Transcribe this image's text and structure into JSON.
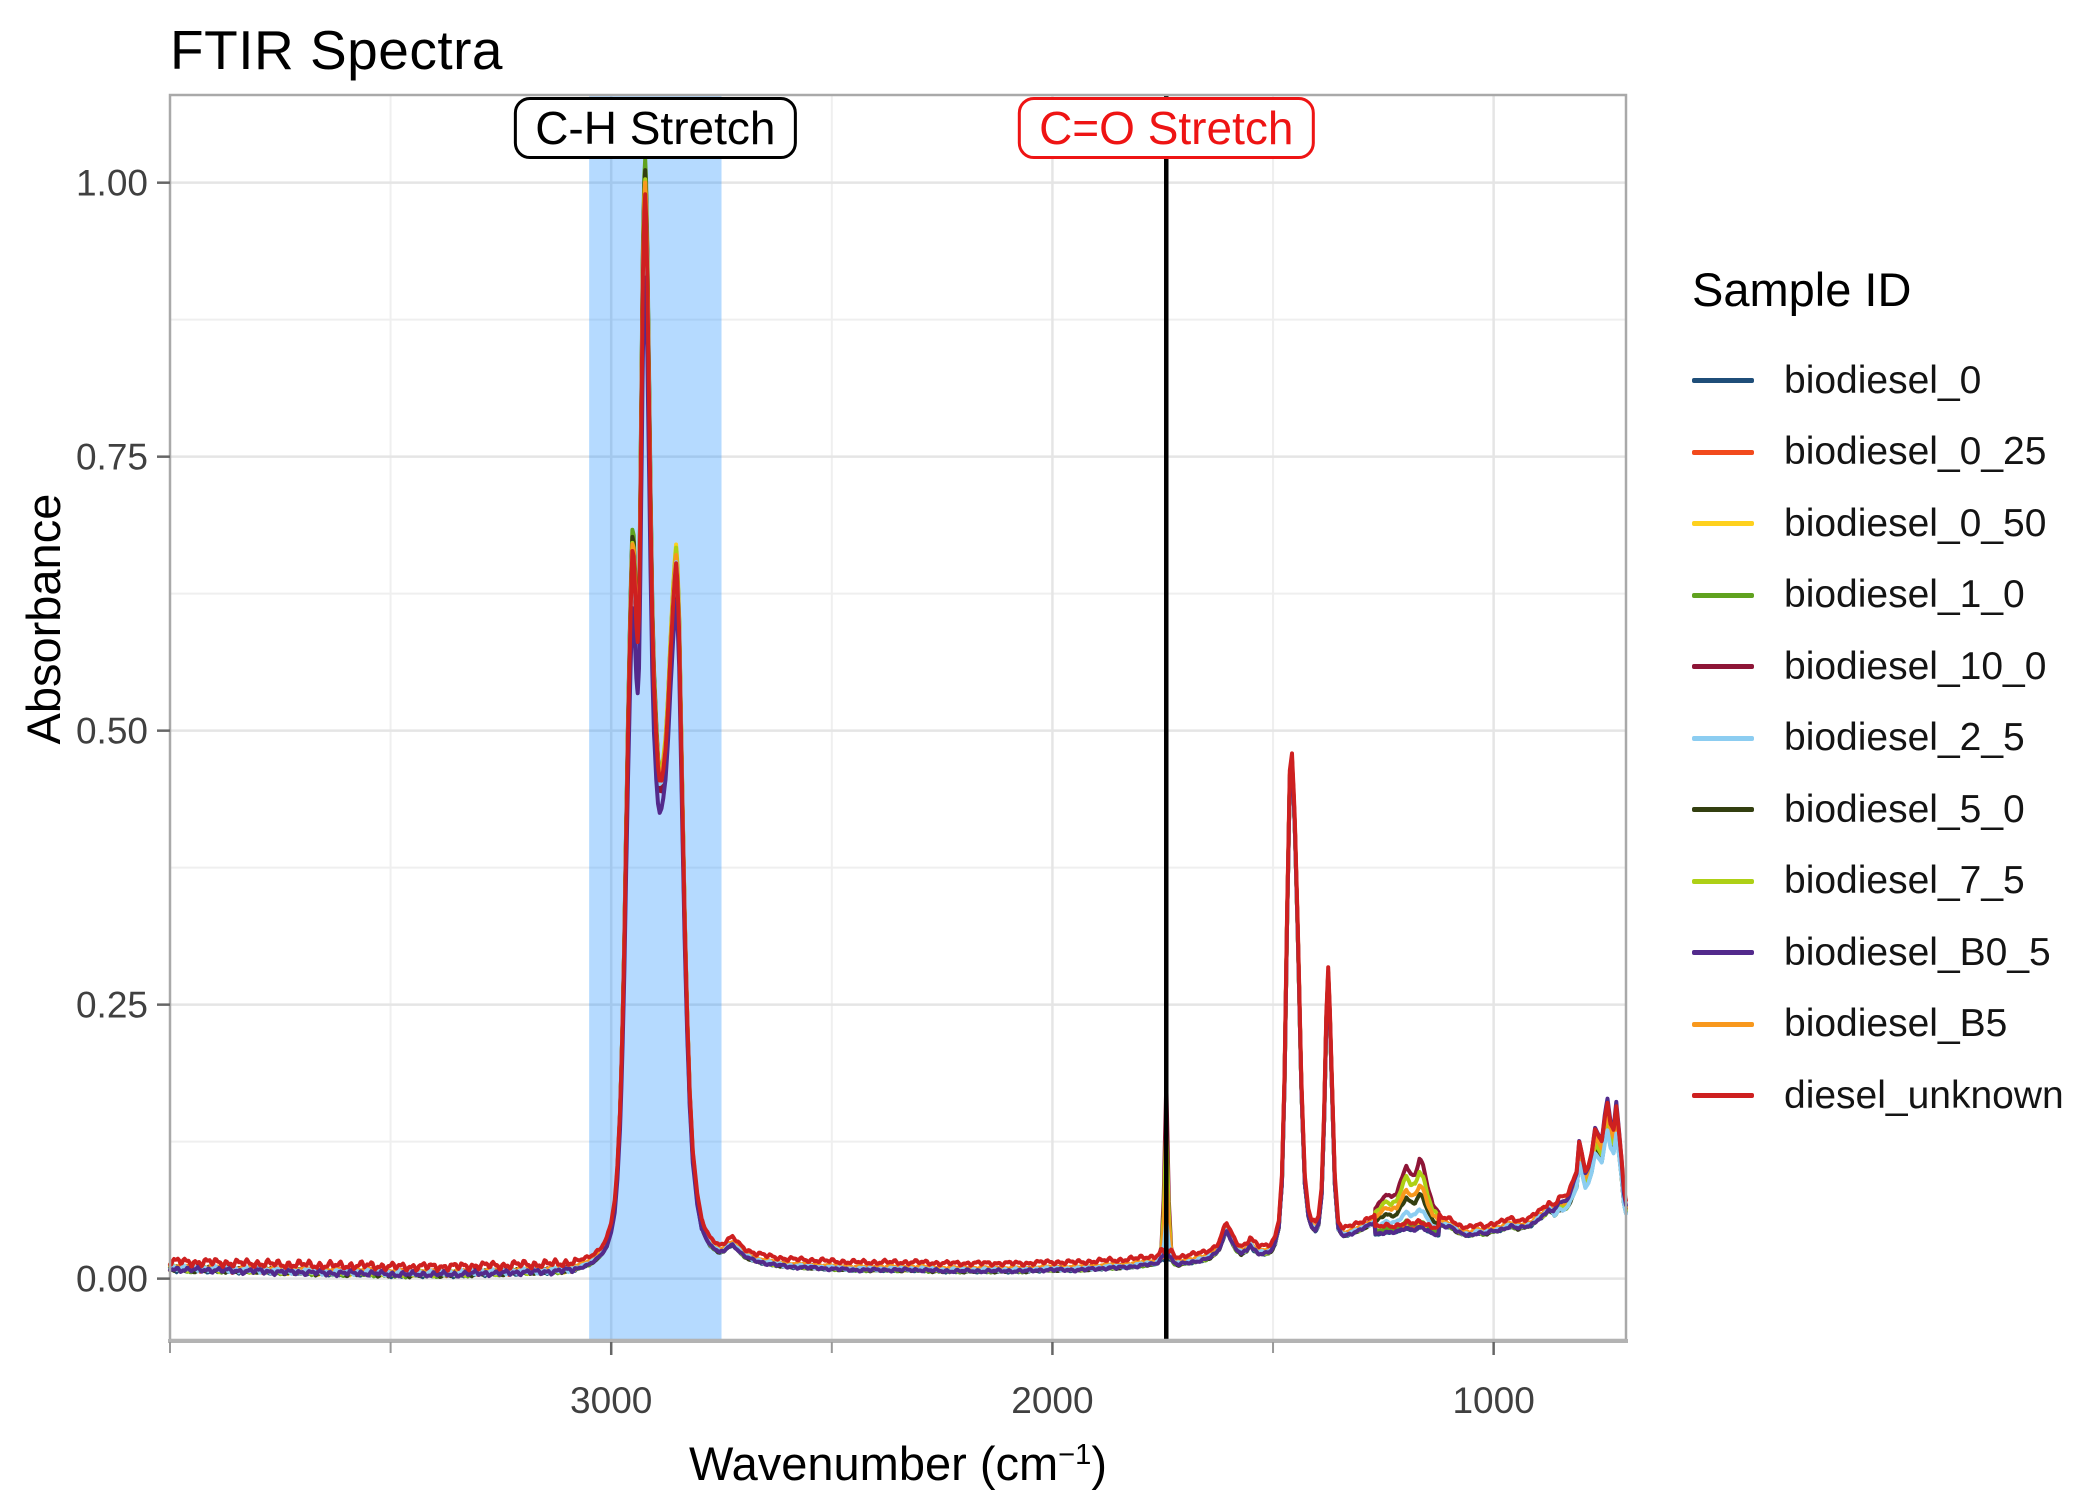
{
  "title": "FTIR Spectra",
  "axes": {
    "x_title_pre": "Wavenumber (cm",
    "x_title_sup": "−1",
    "x_title_post": ")",
    "y_title": "Absorbance",
    "x_ticks": [
      {
        "label": "3000",
        "value": 3000
      },
      {
        "label": "2000",
        "value": 2000
      },
      {
        "label": "1000",
        "value": 1000
      }
    ],
    "x_minor_ticks": [
      4000,
      3500,
      2500,
      1500
    ],
    "y_ticks": [
      {
        "label": "0.00",
        "value": 0
      },
      {
        "label": "0.25",
        "value": 0.25
      },
      {
        "label": "0.50",
        "value": 0.5
      },
      {
        "label": "0.75",
        "value": 0.75
      },
      {
        "label": "1.00",
        "value": 1
      }
    ],
    "y_minor_ticks": [
      0.125,
      0.375,
      0.625,
      0.875
    ]
  },
  "annotations": {
    "ch_region": {
      "label": "C-H Stretch",
      "x_from": 3050,
      "x_to": 2750,
      "fill_rgba": [
        30,
        144,
        255,
        0.33
      ],
      "label_center": 2900
    },
    "co_line": {
      "label": "C=O Stretch",
      "x": 1742,
      "line_color": "#000000",
      "label_color": "#ee1414"
    }
  },
  "legend": {
    "title": "Sample ID",
    "entries": [
      {
        "label": "biodiesel_0",
        "color": "#1f4e79"
      },
      {
        "label": "biodiesel_0_25",
        "color": "#f24a1d"
      },
      {
        "label": "biodiesel_0_50",
        "color": "#fed11e"
      },
      {
        "label": "biodiesel_1_0",
        "color": "#60a21f"
      },
      {
        "label": "biodiesel_10_0",
        "color": "#8e1537"
      },
      {
        "label": "biodiesel_2_5",
        "color": "#8ccdf1"
      },
      {
        "label": "biodiesel_5_0",
        "color": "#333f10"
      },
      {
        "label": "biodiesel_7_5",
        "color": "#aed016"
      },
      {
        "label": "biodiesel_B0_5",
        "color": "#532a8c"
      },
      {
        "label": "biodiesel_B5",
        "color": "#f8981d"
      },
      {
        "label": "diesel_unknown",
        "color": "#ce2020"
      }
    ]
  },
  "chart_data": {
    "type": "line",
    "title": "FTIR Spectra",
    "xlabel": "Wavenumber (cm^-1)",
    "ylabel": "Absorbance",
    "x_range": [
      4000,
      700
    ],
    "x_axis_reversed": true,
    "y_range": [
      -0.056,
      1.08
    ],
    "grid": true,
    "legend_position": "right",
    "highlight_region_wavenumbers": [
      3050,
      2750
    ],
    "vline_wavenumber": 1742,
    "base_profile": [
      [
        700,
        0.065
      ],
      [
        705,
        0.075
      ],
      [
        710,
        0.1
      ],
      [
        715,
        0.12
      ],
      [
        722,
        0.145
      ],
      [
        728,
        0.125
      ],
      [
        735,
        0.13
      ],
      [
        742,
        0.148
      ],
      [
        748,
        0.135
      ],
      [
        755,
        0.115
      ],
      [
        762,
        0.12
      ],
      [
        770,
        0.125
      ],
      [
        778,
        0.105
      ],
      [
        785,
        0.095
      ],
      [
        792,
        0.09
      ],
      [
        800,
        0.105
      ],
      [
        806,
        0.115
      ],
      [
        812,
        0.09
      ],
      [
        820,
        0.082
      ],
      [
        830,
        0.072
      ],
      [
        840,
        0.068
      ],
      [
        852,
        0.068
      ],
      [
        862,
        0.062
      ],
      [
        875,
        0.066
      ],
      [
        888,
        0.06
      ],
      [
        900,
        0.057
      ],
      [
        915,
        0.052
      ],
      [
        930,
        0.05
      ],
      [
        945,
        0.049
      ],
      [
        960,
        0.051
      ],
      [
        975,
        0.049
      ],
      [
        990,
        0.047
      ],
      [
        1005,
        0.046
      ],
      [
        1020,
        0.044
      ],
      [
        1035,
        0.045
      ],
      [
        1050,
        0.043
      ],
      [
        1065,
        0.043
      ],
      [
        1080,
        0.045
      ],
      [
        1095,
        0.05
      ],
      [
        1110,
        0.051
      ],
      [
        1125,
        0.053
      ],
      [
        1138,
        0.056
      ],
      [
        1150,
        0.066
      ],
      [
        1160,
        0.077
      ],
      [
        1168,
        0.08
      ],
      [
        1178,
        0.072
      ],
      [
        1188,
        0.072
      ],
      [
        1198,
        0.077
      ],
      [
        1208,
        0.07
      ],
      [
        1220,
        0.062
      ],
      [
        1232,
        0.06
      ],
      [
        1244,
        0.062
      ],
      [
        1256,
        0.058
      ],
      [
        1268,
        0.055
      ],
      [
        1280,
        0.052
      ],
      [
        1295,
        0.049
      ],
      [
        1310,
        0.046
      ],
      [
        1325,
        0.044
      ],
      [
        1340,
        0.042
      ],
      [
        1352,
        0.048
      ],
      [
        1360,
        0.09
      ],
      [
        1366,
        0.17
      ],
      [
        1371,
        0.24
      ],
      [
        1375,
        0.28
      ],
      [
        1379,
        0.24
      ],
      [
        1384,
        0.15
      ],
      [
        1390,
        0.08
      ],
      [
        1397,
        0.052
      ],
      [
        1404,
        0.047
      ],
      [
        1412,
        0.05
      ],
      [
        1420,
        0.06
      ],
      [
        1428,
        0.09
      ],
      [
        1436,
        0.18
      ],
      [
        1444,
        0.32
      ],
      [
        1451,
        0.42
      ],
      [
        1457,
        0.475
      ],
      [
        1462,
        0.46
      ],
      [
        1468,
        0.33
      ],
      [
        1474,
        0.18
      ],
      [
        1480,
        0.09
      ],
      [
        1487,
        0.05
      ],
      [
        1495,
        0.035
      ],
      [
        1505,
        0.028
      ],
      [
        1518,
        0.026
      ],
      [
        1532,
        0.026
      ],
      [
        1545,
        0.03
      ],
      [
        1552,
        0.034
      ],
      [
        1560,
        0.028
      ],
      [
        1572,
        0.026
      ],
      [
        1585,
        0.03
      ],
      [
        1597,
        0.04
      ],
      [
        1605,
        0.047
      ],
      [
        1613,
        0.04
      ],
      [
        1622,
        0.03
      ],
      [
        1632,
        0.025
      ],
      [
        1645,
        0.022
      ],
      [
        1658,
        0.02
      ],
      [
        1672,
        0.019
      ],
      [
        1686,
        0.018
      ],
      [
        1700,
        0.017
      ],
      [
        1712,
        0.016
      ],
      [
        1772,
        0.016
      ],
      [
        1785,
        0.016
      ],
      [
        1800,
        0.015
      ],
      [
        1820,
        0.014
      ],
      [
        1845,
        0.013
      ],
      [
        1870,
        0.013
      ],
      [
        1900,
        0.012
      ],
      [
        1940,
        0.011
      ],
      [
        1980,
        0.011
      ],
      [
        2020,
        0.011
      ],
      [
        2060,
        0.01
      ],
      [
        2100,
        0.01
      ],
      [
        2150,
        0.01
      ],
      [
        2200,
        0.01
      ],
      [
        2250,
        0.01
      ],
      [
        2300,
        0.011
      ],
      [
        2350,
        0.011
      ],
      [
        2400,
        0.011
      ],
      [
        2450,
        0.011
      ],
      [
        2500,
        0.012
      ],
      [
        2550,
        0.013
      ],
      [
        2600,
        0.014
      ],
      [
        2650,
        0.017
      ],
      [
        2680,
        0.02
      ],
      [
        2700,
        0.024
      ],
      [
        2715,
        0.03
      ],
      [
        2725,
        0.034
      ],
      [
        2735,
        0.032
      ],
      [
        2745,
        0.028
      ],
      [
        2755,
        0.027
      ],
      [
        2765,
        0.03
      ],
      [
        2775,
        0.033
      ],
      [
        2785,
        0.04
      ],
      [
        2795,
        0.05
      ],
      [
        2805,
        0.075
      ],
      [
        2815,
        0.115
      ],
      [
        2822,
        0.17
      ],
      [
        2828,
        0.245
      ],
      [
        2834,
        0.34
      ],
      [
        2840,
        0.47
      ],
      [
        2846,
        0.6
      ],
      [
        2850,
        0.648
      ],
      [
        2853,
        0.665
      ],
      [
        2856,
        0.65
      ],
      [
        2860,
        0.625
      ],
      [
        2865,
        0.585
      ],
      [
        2871,
        0.53
      ],
      [
        2877,
        0.49
      ],
      [
        2882,
        0.472
      ],
      [
        2886,
        0.462
      ],
      [
        2890,
        0.46
      ],
      [
        2894,
        0.472
      ],
      [
        2898,
        0.5
      ],
      [
        2903,
        0.545
      ],
      [
        2907,
        0.61
      ],
      [
        2911,
        0.71
      ],
      [
        2915,
        0.83
      ],
      [
        2918,
        0.92
      ],
      [
        2921,
        0.98
      ],
      [
        2923,
        1.0
      ],
      [
        2925,
        0.985
      ],
      [
        2928,
        0.93
      ],
      [
        2931,
        0.82
      ],
      [
        2934,
        0.7
      ],
      [
        2937,
        0.61
      ],
      [
        2940,
        0.585
      ],
      [
        2943,
        0.6
      ],
      [
        2946,
        0.635
      ],
      [
        2949,
        0.665
      ],
      [
        2952,
        0.67
      ],
      [
        2955,
        0.63
      ],
      [
        2958,
        0.575
      ],
      [
        2962,
        0.5
      ],
      [
        2966,
        0.41
      ],
      [
        2970,
        0.31
      ],
      [
        2975,
        0.22
      ],
      [
        2980,
        0.15
      ],
      [
        2986,
        0.1
      ],
      [
        2992,
        0.068
      ],
      [
        3000,
        0.048
      ],
      [
        3010,
        0.033
      ],
      [
        3022,
        0.025
      ],
      [
        3035,
        0.02
      ],
      [
        3050,
        0.016
      ],
      [
        3070,
        0.013
      ],
      [
        3090,
        0.011
      ],
      [
        3120,
        0.01
      ],
      [
        3160,
        0.009
      ],
      [
        3200,
        0.009
      ],
      [
        3250,
        0.008
      ],
      [
        3300,
        0.008
      ],
      [
        3350,
        0.007
      ],
      [
        3400,
        0.007
      ],
      [
        3450,
        0.007
      ],
      [
        3500,
        0.007
      ],
      [
        3550,
        0.008
      ],
      [
        3600,
        0.008
      ],
      [
        3650,
        0.008
      ],
      [
        3700,
        0.009
      ],
      [
        3750,
        0.009
      ],
      [
        3800,
        0.01
      ],
      [
        3850,
        0.01
      ],
      [
        3900,
        0.011
      ],
      [
        3950,
        0.011
      ],
      [
        4000,
        0.012
      ]
    ],
    "series": [
      {
        "name": "biodiesel_0",
        "color": "#1f4e79",
        "co_peak": 0.02,
        "p1": 0.995,
        "p2": 0.645,
        "fp": 0.05,
        "end": 0.95,
        "base_offset": -0.003,
        "noise": 0.003,
        "seed": 1
      },
      {
        "name": "biodiesel_0_25",
        "color": "#f24a1d",
        "co_peak": 0.024,
        "p1": 1.0,
        "p2": 0.65,
        "fp": 0.052,
        "end": 0.95,
        "base_offset": -0.002,
        "noise": 0.003,
        "seed": 2
      },
      {
        "name": "biodiesel_0_50",
        "color": "#fed11e",
        "co_peak": 0.028,
        "p1": 1.01,
        "p2": 0.672,
        "fp": 0.054,
        "end": 0.92,
        "base_offset": -0.002,
        "noise": 0.003,
        "seed": 3
      },
      {
        "name": "biodiesel_1_0",
        "color": "#60a21f",
        "co_peak": 0.038,
        "p1": 1.025,
        "p2": 0.662,
        "fp": 0.056,
        "end": 0.93,
        "base_offset": -0.003,
        "noise": 0.003,
        "seed": 4
      },
      {
        "name": "biodiesel_10_0",
        "color": "#8e1537",
        "co_peak": 0.18,
        "p1": 0.98,
        "p2": 0.64,
        "fp": 0.11,
        "end": 1.0,
        "base_offset": -0.001,
        "noise": 0.003,
        "seed": 5
      },
      {
        "name": "biodiesel_5_0",
        "color": "#333f10",
        "co_peak": 0.085,
        "p1": 1.015,
        "p2": 0.667,
        "fp": 0.08,
        "end": 0.93,
        "base_offset": -0.003,
        "noise": 0.003,
        "seed": 7
      },
      {
        "name": "biodiesel_7_5",
        "color": "#aed016",
        "co_peak": 0.14,
        "p1": 1.005,
        "p2": 0.669,
        "fp": 0.1,
        "end": 1.0,
        "base_offset": -0.002,
        "noise": 0.003,
        "seed": 8
      },
      {
        "name": "biodiesel_B5",
        "color": "#f8981d",
        "co_peak": 0.095,
        "p1": 1.0,
        "p2": 0.66,
        "fp": 0.085,
        "end": 1.05,
        "base_offset": 0.0,
        "noise": 0.003,
        "seed": 10
      },
      {
        "name": "biodiesel_2_5",
        "color": "#8ccdf1",
        "co_peak": 0.055,
        "p1": 0.985,
        "p2": 0.655,
        "fp": 0.065,
        "end": 0.9,
        "base_offset": -0.002,
        "noise": 0.003,
        "seed": 6
      },
      {
        "name": "biodiesel_B0_5",
        "color": "#532a8c",
        "co_peak": 0.032,
        "p1": 0.915,
        "p2": 0.62,
        "fp": 0.05,
        "end": 1.18,
        "base_offset": -0.003,
        "noise": 0.003,
        "seed": 9
      },
      {
        "name": "diesel_unknown",
        "color": "#ce2020",
        "co_peak": 0.02,
        "p1": 0.985,
        "p2": 0.648,
        "fp": 0.048,
        "end": 1.08,
        "base_offset": 0.004,
        "noise": 0.0045,
        "seed": 11
      }
    ]
  },
  "style_colors": {
    "grid_major": "#e5e5e5",
    "grid_minor": "#efefef",
    "panel_border": "#a9a9a9",
    "axis_line": "#b3b3b3",
    "tick_major": "#666666",
    "tick_minor": "#999999",
    "tick_label": "#404040"
  }
}
